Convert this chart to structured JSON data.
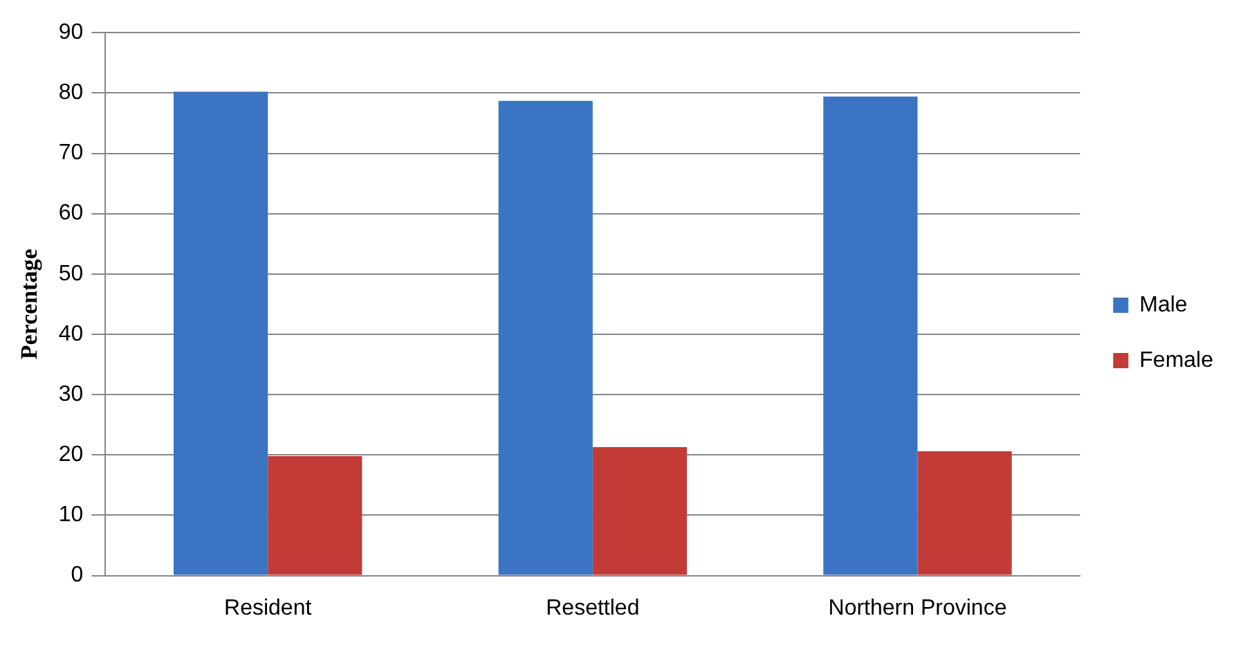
{
  "chart_data": {
    "type": "bar",
    "ylabel": "Percentage",
    "categories": [
      "Resident",
      "Resettled",
      "Northern Province"
    ],
    "series": [
      {
        "name": "Male",
        "color": "#3a74c2",
        "values": [
          80.2,
          78.7,
          79.4
        ]
      },
      {
        "name": "Female",
        "color": "#c23b36",
        "values": [
          19.8,
          21.3,
          20.6
        ]
      }
    ],
    "ylim": [
      0,
      90
    ],
    "yticks": [
      0,
      10,
      20,
      30,
      40,
      50,
      60,
      70,
      80,
      90
    ],
    "grid": "y",
    "legend": "right"
  }
}
